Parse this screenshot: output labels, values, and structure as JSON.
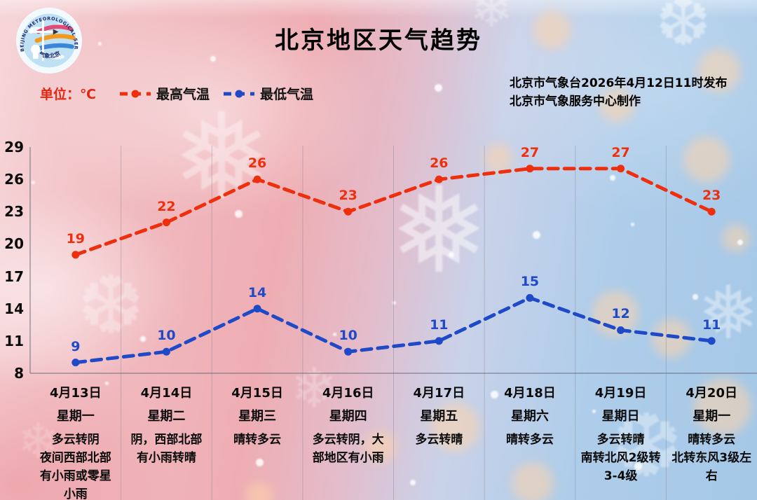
{
  "page": {
    "title": "北京地区天气趋势",
    "issued_line1": "北京市气象台2026年4月12日11时发布",
    "issued_line2": "北京市气象服务中心制作",
    "unit_label": "单位：℃",
    "logo_ring_text": "BEIJING METEOROLOGICAL SERVICE",
    "logo_bottom_text": "气象北京"
  },
  "legend": [
    {
      "label": "最高气温",
      "color": "#ed2f0e"
    },
    {
      "label": "最低气温",
      "color": "#1e49c7"
    }
  ],
  "chart_data": {
    "type": "line",
    "title": "北京地区天气趋势",
    "unit": "℃",
    "categories": [
      "4月13日",
      "4月14日",
      "4月15日",
      "4月16日",
      "4月17日",
      "4月18日",
      "4月19日",
      "4月20日"
    ],
    "weekdays": [
      "星期一",
      "星期二",
      "星期三",
      "星期四",
      "星期五",
      "星期六",
      "星期日",
      "星期一"
    ],
    "weather": [
      "多云转阴\n夜间西部北部\n有小雨或零星\n小雨",
      "阴，西部北部\n有小雨转晴",
      "晴转多云",
      "多云转阴，大\n部地区有小雨",
      "多云转晴",
      "晴转多云",
      "多云转晴\n南转北风2级转\n3-4级",
      "晴转多云\n北转东风3级左\n右"
    ],
    "series": [
      {
        "name": "最高气温",
        "color": "#ed2f0e",
        "values": [
          19,
          22,
          26,
          23,
          26,
          27,
          27,
          23
        ]
      },
      {
        "name": "最低气温",
        "color": "#1e49c7",
        "values": [
          9,
          10,
          14,
          10,
          11,
          15,
          12,
          11
        ]
      }
    ],
    "yticks": [
      29,
      26,
      23,
      20,
      17,
      14,
      11,
      8
    ],
    "ylim": [
      8,
      29
    ],
    "grid": "vertical column separators",
    "legend_position": "top-left"
  }
}
